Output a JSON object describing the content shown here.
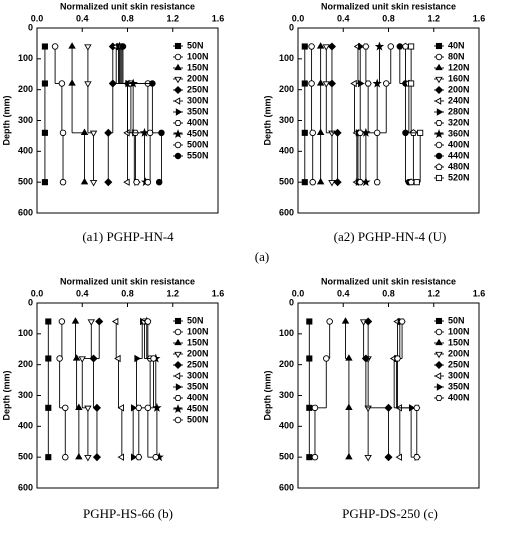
{
  "figure_label": "(a)",
  "chart_data": [
    {
      "type": "line",
      "title": "Normalized unit skin resistance",
      "y_label": "Depth (mm)",
      "caption": "(a1) PGHP-HN-4",
      "xlim": [
        0,
        1.6
      ],
      "xticks": [
        {
          "value": 0,
          "label": "0.0"
        },
        0.4,
        0.8,
        1.2,
        1.6
      ],
      "ylim": [
        0,
        600
      ],
      "yticks": [
        0,
        100,
        200,
        300,
        400,
        500,
        600
      ],
      "color": "#000000",
      "depths": [
        60,
        180,
        340,
        500
      ],
      "series": [
        {
          "name": "50N",
          "values": [
            0.07,
            0.07,
            0.07,
            0.07
          ]
        },
        {
          "name": "100N",
          "values": [
            0.16,
            0.22,
            0.23,
            0.23
          ]
        },
        {
          "name": "150N",
          "values": [
            0.31,
            0.31,
            0.42,
            0.42
          ]
        },
        {
          "name": "200N",
          "values": [
            0.45,
            0.45,
            0.5,
            0.5
          ]
        },
        {
          "name": "250N",
          "values": [
            0.67,
            0.67,
            0.63,
            0.63
          ]
        },
        {
          "name": "300N",
          "values": [
            0.7,
            0.8,
            0.8,
            0.8
          ]
        },
        {
          "name": "350N",
          "values": [
            0.72,
            0.8,
            0.86,
            0.88
          ]
        },
        {
          "name": "400N",
          "values": [
            0.74,
            0.83,
            0.87,
            0.88
          ]
        },
        {
          "name": "450N",
          "values": [
            0.73,
            0.85,
            0.95,
            0.96
          ]
        },
        {
          "name": "500N",
          "values": [
            0.75,
            0.98,
            1.0,
            0.98
          ]
        },
        {
          "name": "550N",
          "values": [
            0.76,
            1.02,
            1.1,
            1.08
          ]
        }
      ]
    },
    {
      "type": "line",
      "title": "Normalized unit skin resistance",
      "y_label": "Depth (mm)",
      "caption": "(a2) PGHP-HN-4 (U)",
      "xlim": [
        0,
        1.6
      ],
      "xticks": [
        {
          "value": 0,
          "label": "0.0"
        },
        0.4,
        0.8,
        1.2,
        1.6
      ],
      "ylim": [
        0,
        600
      ],
      "yticks": [
        0,
        100,
        200,
        300,
        400,
        500,
        600
      ],
      "color": "#000000",
      "depths": [
        60,
        180,
        340,
        500
      ],
      "series": [
        {
          "name": "40N",
          "values": [
            0.06,
            0.06,
            0.06,
            0.06
          ]
        },
        {
          "name": "80N",
          "values": [
            0.12,
            0.12,
            0.13,
            0.13
          ]
        },
        {
          "name": "120N",
          "values": [
            0.2,
            0.2,
            0.2,
            0.2
          ]
        },
        {
          "name": "160N",
          "values": [
            0.25,
            0.25,
            0.3,
            0.3
          ]
        },
        {
          "name": "200N",
          "values": [
            0.3,
            0.3,
            0.35,
            0.35
          ]
        },
        {
          "name": "240N",
          "values": [
            0.53,
            0.5,
            0.52,
            0.52
          ]
        },
        {
          "name": "280N",
          "values": [
            0.55,
            0.55,
            0.53,
            0.53
          ]
        },
        {
          "name": "320N",
          "values": [
            0.6,
            0.62,
            0.55,
            0.55
          ]
        },
        {
          "name": "360N",
          "values": [
            0.72,
            0.7,
            0.6,
            0.6
          ]
        },
        {
          "name": "400N",
          "values": [
            0.82,
            0.78,
            0.7,
            0.7
          ]
        },
        {
          "name": "440N",
          "values": [
            0.9,
            0.95,
            0.95,
            0.98
          ]
        },
        {
          "name": "480N",
          "values": [
            0.95,
            0.98,
            1.02,
            1.0
          ]
        },
        {
          "name": "520N",
          "values": [
            1.0,
            1.0,
            1.08,
            1.05
          ]
        }
      ]
    },
    {
      "type": "line",
      "title": "Normalized unit skin resistance",
      "y_label": "Depth (mm)",
      "caption": "PGHP-HS-66 (b)",
      "xlim": [
        0,
        1.6
      ],
      "xticks": [
        {
          "value": 0,
          "label": "0.0"
        },
        0.4,
        0.8,
        1.2,
        1.6
      ],
      "ylim": [
        0,
        600
      ],
      "yticks": [
        0,
        100,
        200,
        300,
        400,
        500,
        600
      ],
      "color": "#000000",
      "depths": [
        60,
        180,
        340,
        500
      ],
      "series": [
        {
          "name": "50N",
          "values": [
            0.1,
            0.1,
            0.1,
            0.1
          ]
        },
        {
          "name": "100N",
          "values": [
            0.22,
            0.2,
            0.25,
            0.25
          ]
        },
        {
          "name": "150N",
          "values": [
            0.34,
            0.35,
            0.37,
            0.37
          ]
        },
        {
          "name": "200N",
          "values": [
            0.48,
            0.4,
            0.45,
            0.45
          ]
        },
        {
          "name": "250N",
          "values": [
            0.55,
            0.5,
            0.53,
            0.53
          ]
        },
        {
          "name": "300N",
          "values": [
            0.7,
            0.72,
            0.75,
            0.75
          ]
        },
        {
          "name": "350N",
          "values": [
            0.93,
            0.88,
            0.85,
            0.85
          ]
        },
        {
          "name": "400N",
          "values": [
            0.95,
            1.0,
            0.9,
            0.9
          ]
        },
        {
          "name": "450N",
          "values": [
            0.97,
            1.05,
            1.06,
            1.08
          ]
        },
        {
          "name": "500N",
          "values": [
            0.98,
            1.03,
            0.98,
            1.05
          ]
        }
      ]
    },
    {
      "type": "line",
      "title": "Normalized unit skin resistance",
      "y_label": "Depth (mm)",
      "caption": "PGHP-DS-250 (c)",
      "xlim": [
        0,
        1.6
      ],
      "xticks": [
        {
          "value": 0,
          "label": "0.0"
        },
        0.4,
        0.8,
        1.2,
        1.6
      ],
      "ylim": [
        0,
        600
      ],
      "yticks": [
        0,
        100,
        200,
        300,
        400,
        500,
        600
      ],
      "color": "#000000",
      "depths": [
        60,
        180,
        340,
        500
      ],
      "series": [
        {
          "name": "50N",
          "values": [
            0.1,
            0.1,
            0.1,
            0.1
          ]
        },
        {
          "name": "100N",
          "values": [
            0.28,
            0.25,
            0.15,
            0.15
          ]
        },
        {
          "name": "150N",
          "values": [
            0.42,
            0.45,
            0.45,
            0.45
          ]
        },
        {
          "name": "200N",
          "values": [
            0.58,
            0.62,
            0.62,
            0.62
          ]
        },
        {
          "name": "250N",
          "values": [
            0.62,
            0.6,
            0.8,
            0.8
          ]
        },
        {
          "name": "300N",
          "values": [
            0.88,
            0.85,
            0.9,
            0.9
          ]
        },
        {
          "name": "350N",
          "values": [
            0.9,
            0.87,
            1.0,
            1.05
          ]
        },
        {
          "name": "400N",
          "values": [
            0.92,
            0.88,
            1.05,
            1.05
          ]
        }
      ]
    }
  ]
}
